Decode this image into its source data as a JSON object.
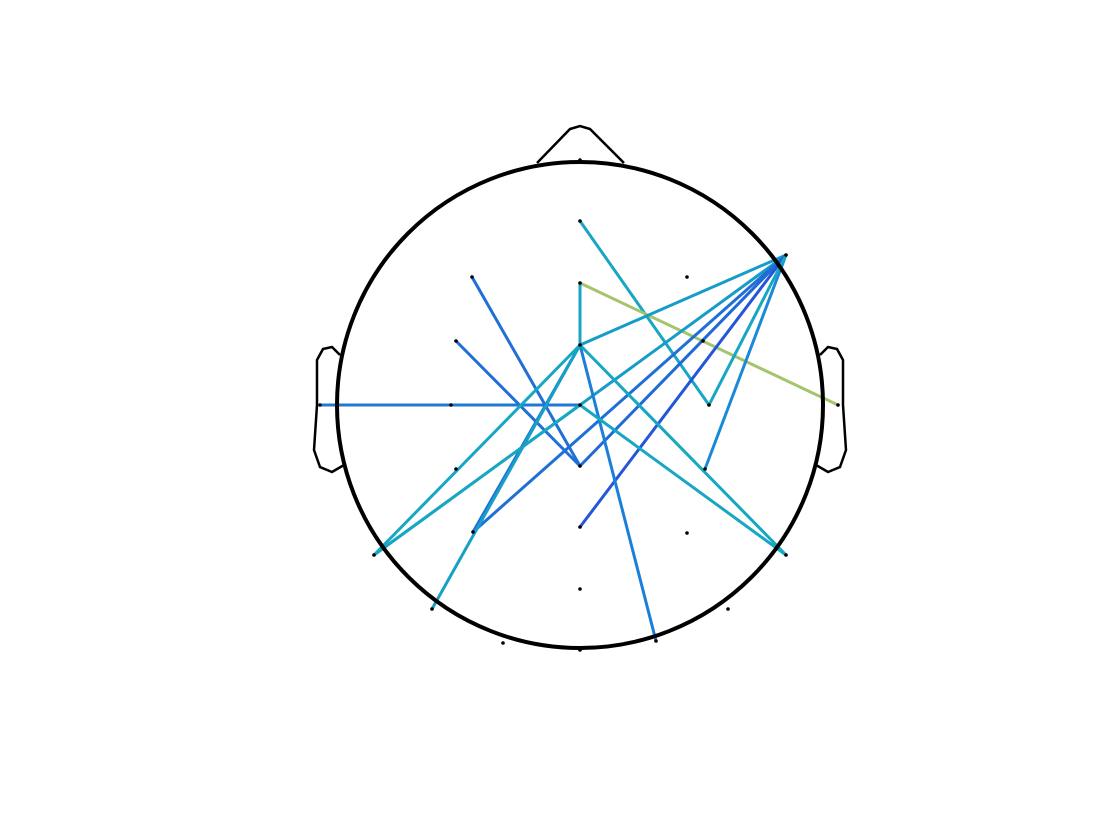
{
  "diagram": {
    "edges": [
      {
        "from": 1,
        "to": 12,
        "color": "#17a7c2"
      },
      {
        "from": 5,
        "to": 13,
        "color": "#a5c46b"
      },
      {
        "from": 5,
        "to": 8,
        "color": "#17a7c2"
      },
      {
        "from": 8,
        "to": 4,
        "color": "#159cc8"
      },
      {
        "from": 4,
        "to": 17,
        "color": "#159cc8"
      },
      {
        "from": 4,
        "to": 18,
        "color": "#1f6fd6"
      },
      {
        "from": 4,
        "to": 15,
        "color": "#1f6ad6"
      },
      {
        "from": 4,
        "to": 19,
        "color": "#2356d8"
      },
      {
        "from": 4,
        "to": 16,
        "color": "#1a8ad8"
      },
      {
        "from": 4,
        "to": 12,
        "color": "#17a7c2"
      },
      {
        "from": 2,
        "to": 15,
        "color": "#1f6fd6"
      },
      {
        "from": 6,
        "to": 15,
        "color": "#1f6fd6"
      },
      {
        "from": 9,
        "to": 11,
        "color": "#1f78d6"
      },
      {
        "from": 8,
        "to": 18,
        "color": "#1f6fd6"
      },
      {
        "from": 8,
        "to": 27,
        "color": "#1a7fd8"
      },
      {
        "from": 8,
        "to": 21,
        "color": "#17a7c2"
      },
      {
        "from": 11,
        "to": 17,
        "color": "#17a7c2"
      },
      {
        "from": 11,
        "to": 21,
        "color": "#17a7c2"
      },
      {
        "from": 8,
        "to": 23,
        "color": "#16a0c8"
      },
      {
        "from": 17,
        "to": 8,
        "color": "#17a7c2"
      }
    ]
  }
}
